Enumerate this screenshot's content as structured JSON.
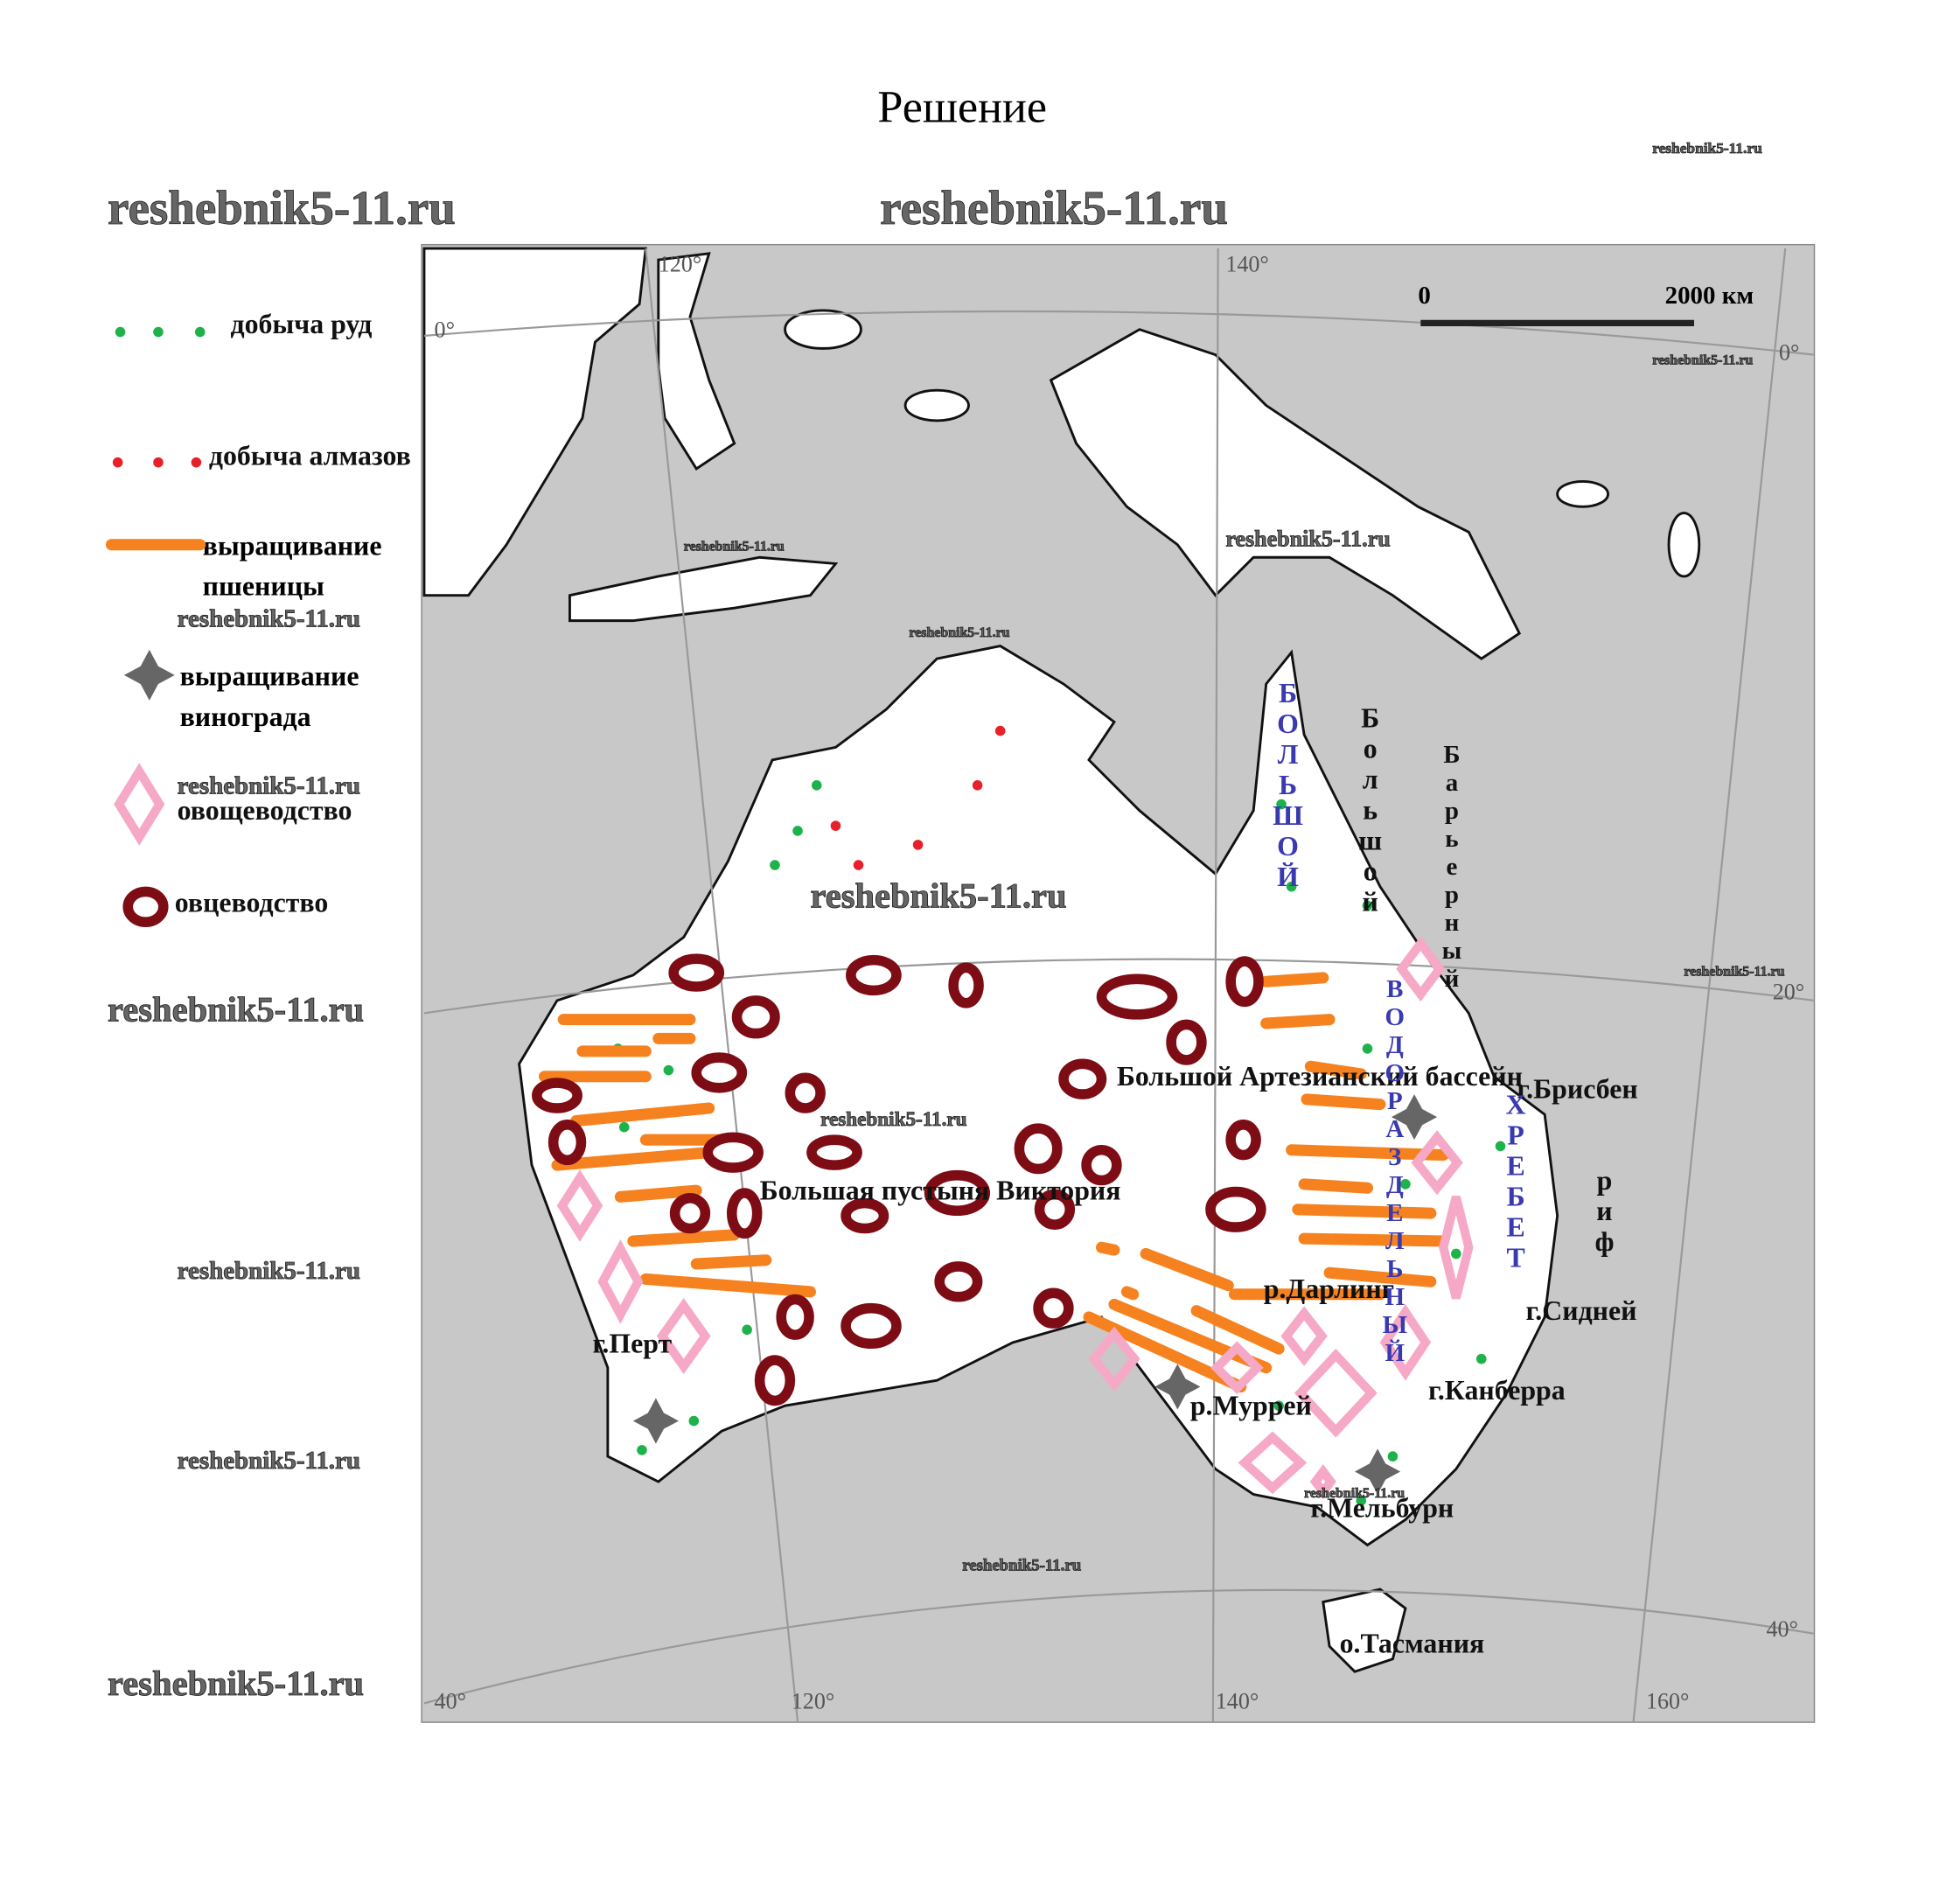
{
  "title": "Решение",
  "watermark": "reshebnik5-11.ru",
  "legend": [
    {
      "label": "добыча руд"
    },
    {
      "label": "добыча алмазов"
    },
    {
      "label": "выращивание пшеницы"
    },
    {
      "label": "выращивание винограда"
    },
    {
      "label": "овощеводство"
    },
    {
      "label": "овцеводство"
    }
  ],
  "scale": {
    "start": "0",
    "end": "2000 км"
  },
  "graticule": {
    "longitudes": [
      "120°",
      "140°",
      "160°"
    ],
    "latitudes": [
      "0°",
      "20°",
      "40°"
    ]
  },
  "places": [
    "Большой Артезианский бассейн",
    "Большая пустыня Виктория",
    "г.Перт",
    "р.Дарлинг",
    "р.Муррей",
    "г.Брисбен",
    "г.Сидней",
    "г.Канберра",
    "г.Мельбурн",
    "о.Тасмания"
  ],
  "range": [
    "БОЛЬШОЙ",
    "ВОДОРАЗДЕЛЬНЫЙ",
    "ХРЕБЕТ"
  ],
  "reef": [
    "Большой",
    "Барьерный",
    "риф"
  ]
}
